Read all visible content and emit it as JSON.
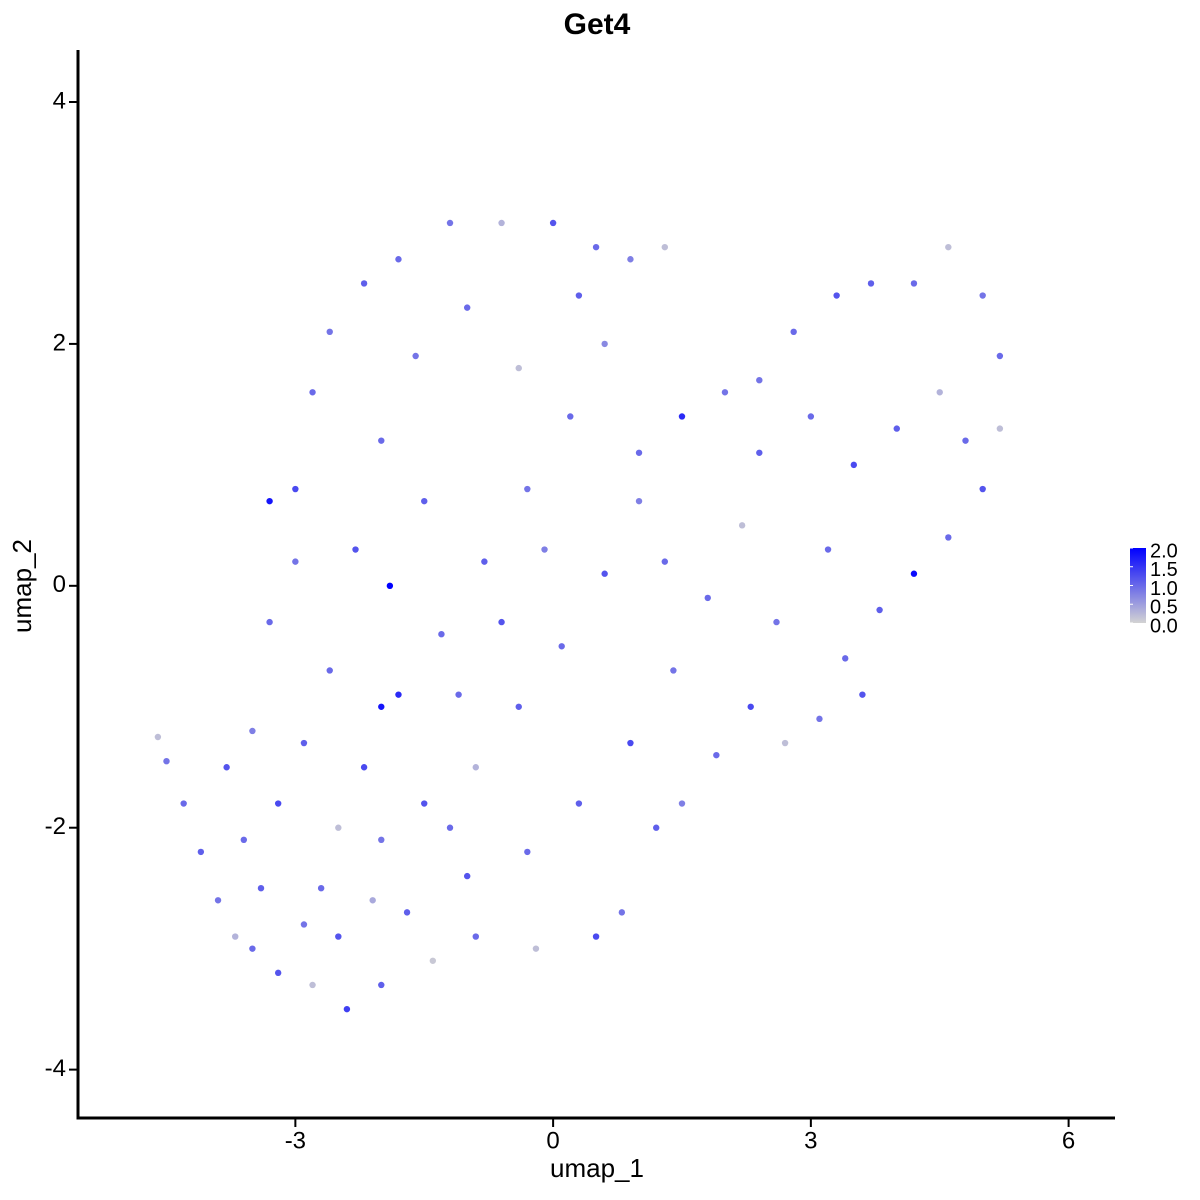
{
  "chart_data": {
    "type": "scatter",
    "title": "Get4",
    "x_label": "umap_1",
    "y_label": "umap_2",
    "xlim": [
      -5.53,
      6.54
    ],
    "ylim": [
      -4.4,
      4.43
    ],
    "xticks": [
      -3,
      0,
      3,
      6
    ],
    "yticks": [
      -4,
      -2,
      0,
      2,
      4
    ],
    "grid": false,
    "colorbar": {
      "colors": [
        "#d3d3d3",
        "#0000ff"
      ],
      "lim": [
        0,
        2
      ],
      "ticks": [
        {
          "value": 0,
          "label": "0.0"
        },
        0.5,
        {
          "value": 1,
          "label": "1.0"
        },
        1.5,
        {
          "value": 2,
          "label": "2.0"
        }
      ]
    },
    "x": [
      -4.6,
      -4.5,
      -4.3,
      -4.1,
      -3.9,
      -3.7,
      -3.5,
      -3.2,
      -2.8,
      -2.4,
      -2.0,
      -1.4,
      -0.9,
      -0.2,
      0.5,
      0.8,
      -3.8,
      -3.5,
      -3.3,
      -3.0,
      -3.0,
      -2.8,
      -2.6,
      -2.2,
      -1.8,
      -1.2,
      -0.6,
      0.0,
      0.5,
      0.9,
      1.3,
      -2.5,
      -2.2,
      -1.8,
      -1.3,
      -0.8,
      -0.3,
      0.2,
      0.6,
      -2.7,
      -2.0,
      -1.5,
      -0.9,
      -0.4,
      0.1,
      0.6,
      1.0,
      -1.0,
      -0.3,
      0.3,
      0.9,
      1.4,
      1.8,
      2.2,
      2.4,
      2.0,
      1.5,
      1.0,
      1.5,
      1.9,
      2.3,
      2.7,
      3.1,
      3.4,
      3.8,
      4.2,
      4.6,
      5.0,
      5.2,
      5.2,
      5.0,
      4.6,
      4.2,
      3.7,
      3.3,
      2.8,
      2.4,
      3.0,
      3.5,
      4.0,
      4.5,
      4.8,
      3.2,
      3.6,
      2.6,
      -3.6,
      -3.2,
      -3.4,
      -2.9,
      -2.5,
      -2.1,
      -1.7,
      -1.2,
      -2.6,
      -2.3,
      -2.0,
      -1.6,
      -1.0,
      -0.4,
      -1.5,
      -1.1,
      -0.6,
      -0.1,
      0.3,
      -3.3,
      -2.9,
      -2.0,
      -1.9,
      1.3,
      1.2
    ],
    "y": [
      -1.25,
      -1.45,
      -1.8,
      -2.2,
      -2.6,
      -2.9,
      -3.0,
      -3.2,
      -3.3,
      -3.5,
      -3.3,
      -3.1,
      -2.9,
      -3.0,
      -2.9,
      -2.7,
      -1.5,
      -1.2,
      -0.3,
      0.2,
      0.8,
      1.6,
      2.1,
      2.5,
      2.7,
      3.0,
      3.0,
      3.0,
      2.8,
      2.7,
      2.8,
      -2.0,
      -1.5,
      -0.9,
      -0.4,
      0.2,
      0.8,
      1.4,
      2.0,
      -2.5,
      -2.1,
      -1.8,
      -1.5,
      -1.0,
      -0.5,
      0.1,
      0.7,
      -2.4,
      -2.2,
      -1.8,
      -1.3,
      -0.7,
      -0.1,
      0.5,
      1.1,
      1.6,
      1.4,
      1.1,
      -1.8,
      -1.4,
      -1.0,
      -1.3,
      -1.1,
      -0.6,
      -0.2,
      0.1,
      0.4,
      0.8,
      1.3,
      1.9,
      2.4,
      2.8,
      2.5,
      2.5,
      2.4,
      2.1,
      1.7,
      1.4,
      1.0,
      1.3,
      1.6,
      1.2,
      0.3,
      -0.9,
      -0.3,
      -2.1,
      -1.8,
      -2.5,
      -2.8,
      -2.9,
      -2.6,
      -2.7,
      -2.0,
      -0.7,
      0.3,
      1.2,
      1.9,
      2.3,
      1.8,
      0.7,
      -0.9,
      -0.3,
      0.3,
      2.4,
      0.7,
      -1.3,
      -1.0,
      0.0,
      0.2,
      -2.0
    ],
    "values": [
      0.2,
      0.9,
      1.0,
      1.1,
      0.9,
      0.3,
      1.0,
      1.2,
      0.2,
      1.4,
      1.1,
      0.1,
      1.0,
      0.2,
      1.3,
      0.9,
      1.2,
      0.8,
      1.0,
      0.9,
      1.3,
      1.0,
      0.9,
      1.1,
      1.0,
      0.9,
      0.3,
      1.2,
      1.0,
      0.8,
      0.2,
      0.2,
      1.3,
      1.6,
      1.0,
      1.1,
      0.9,
      1.0,
      0.7,
      1.0,
      0.9,
      1.2,
      0.3,
      1.1,
      1.0,
      1.2,
      0.8,
      1.2,
      1.0,
      1.1,
      1.3,
      0.9,
      1.0,
      0.2,
      1.1,
      0.9,
      1.6,
      1.0,
      0.8,
      1.0,
      1.3,
      0.2,
      0.9,
      1.0,
      1.1,
      1.9,
      1.0,
      1.2,
      0.2,
      1.0,
      0.9,
      0.2,
      1.0,
      1.1,
      1.2,
      1.0,
      0.9,
      1.0,
      1.3,
      1.1,
      0.3,
      1.0,
      1.0,
      1.2,
      0.9,
      1.0,
      1.3,
      1.1,
      0.9,
      1.2,
      0.4,
      1.1,
      1.0,
      1.0,
      1.2,
      1.0,
      0.9,
      1.0,
      0.2,
      1.1,
      1.0,
      1.2,
      0.8,
      1.1,
      1.8,
      1.1,
      1.8,
      2.0,
      1.0,
      1.1
    ]
  }
}
